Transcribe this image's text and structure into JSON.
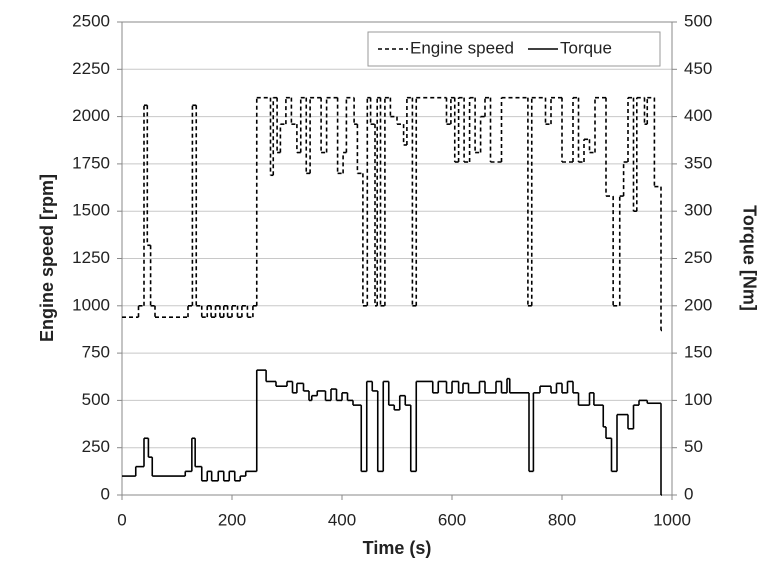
{
  "chart_data": {
    "type": "line",
    "xlabel": "Time (s)",
    "ylabel": "Engine speed [rpm]",
    "y2label": "Torque [Nm]",
    "xlim": [
      0,
      1000
    ],
    "xticks": [
      0,
      200,
      400,
      600,
      800,
      1000
    ],
    "ylim": [
      0,
      2500
    ],
    "yticks": [
      0,
      250,
      500,
      750,
      1000,
      1250,
      1500,
      1750,
      2000,
      2250,
      2500
    ],
    "y2lim": [
      0,
      500
    ],
    "y2ticks": [
      0,
      50,
      100,
      150,
      200,
      250,
      300,
      350,
      400,
      450,
      500
    ],
    "grid": true,
    "legend": "upper right",
    "step": "post",
    "series": [
      {
        "name": "Engine speed",
        "color": "#000000",
        "dash": "dashed",
        "x": [
          0,
          30,
          40,
          46,
          52,
          60,
          120,
          128,
          135,
          145,
          155,
          162,
          170,
          178,
          185,
          192,
          200,
          210,
          218,
          228,
          238,
          245,
          270,
          275,
          282,
          288,
          298,
          308,
          318,
          325,
          335,
          342,
          362,
          372,
          392,
          402,
          408,
          422,
          428,
          438,
          446,
          452,
          460,
          464,
          470,
          478,
          488,
          500,
          512,
          518,
          528,
          535,
          590,
          598,
          605,
          612,
          622,
          632,
          642,
          652,
          660,
          670,
          690,
          738,
          745,
          770,
          780,
          800,
          820,
          830,
          840,
          850,
          860,
          880,
          893,
          905,
          912,
          920,
          930,
          936,
          950,
          955,
          968,
          980
        ],
        "values": [
          940,
          1000,
          2060,
          1320,
          1000,
          940,
          1000,
          2060,
          1000,
          940,
          1000,
          940,
          1000,
          940,
          1000,
          940,
          1000,
          940,
          1000,
          940,
          1000,
          2100,
          1690,
          2100,
          1810,
          1960,
          2100,
          1960,
          1810,
          2100,
          1700,
          2100,
          1810,
          2100,
          1700,
          1810,
          2100,
          1960,
          1700,
          1000,
          2100,
          1960,
          1000,
          2100,
          1000,
          2100,
          2000,
          1960,
          1850,
          2100,
          1000,
          2100,
          1960,
          2100,
          1760,
          2100,
          1760,
          2100,
          1810,
          2000,
          2100,
          1760,
          2100,
          1000,
          2100,
          1960,
          2100,
          1760,
          2100,
          1760,
          1880,
          1810,
          2100,
          1580,
          1000,
          1580,
          1760,
          2100,
          1500,
          2100,
          1960,
          2100,
          1630,
          870
        ]
      },
      {
        "name": "Torque",
        "color": "#000000",
        "dash": "solid",
        "axis": "y2",
        "x": [
          0,
          25,
          40,
          48,
          55,
          115,
          127,
          133,
          145,
          155,
          163,
          175,
          185,
          195,
          205,
          215,
          225,
          245,
          262,
          280,
          300,
          310,
          318,
          330,
          340,
          345,
          355,
          370,
          380,
          390,
          400,
          410,
          420,
          435,
          445,
          455,
          465,
          475,
          485,
          495,
          505,
          515,
          525,
          535,
          565,
          575,
          590,
          600,
          612,
          620,
          630,
          650,
          660,
          680,
          690,
          700,
          705,
          740,
          748,
          760,
          780,
          790,
          800,
          810,
          820,
          830,
          850,
          858,
          875,
          880,
          890,
          900,
          920,
          930,
          940,
          955,
          980
        ],
        "values": [
          20,
          30,
          60,
          40,
          20,
          25,
          60,
          30,
          15,
          25,
          15,
          25,
          15,
          25,
          15,
          20,
          25,
          132,
          120,
          115,
          120,
          108,
          118,
          110,
          100,
          105,
          110,
          100,
          112,
          100,
          108,
          100,
          95,
          25,
          120,
          110,
          25,
          120,
          95,
          90,
          105,
          95,
          25,
          120,
          108,
          120,
          108,
          120,
          108,
          118,
          108,
          120,
          108,
          120,
          108,
          123,
          108,
          25,
          108,
          115,
          108,
          118,
          108,
          120,
          108,
          95,
          108,
          95,
          72,
          60,
          25,
          85,
          70,
          95,
          100,
          97,
          0
        ]
      }
    ]
  }
}
